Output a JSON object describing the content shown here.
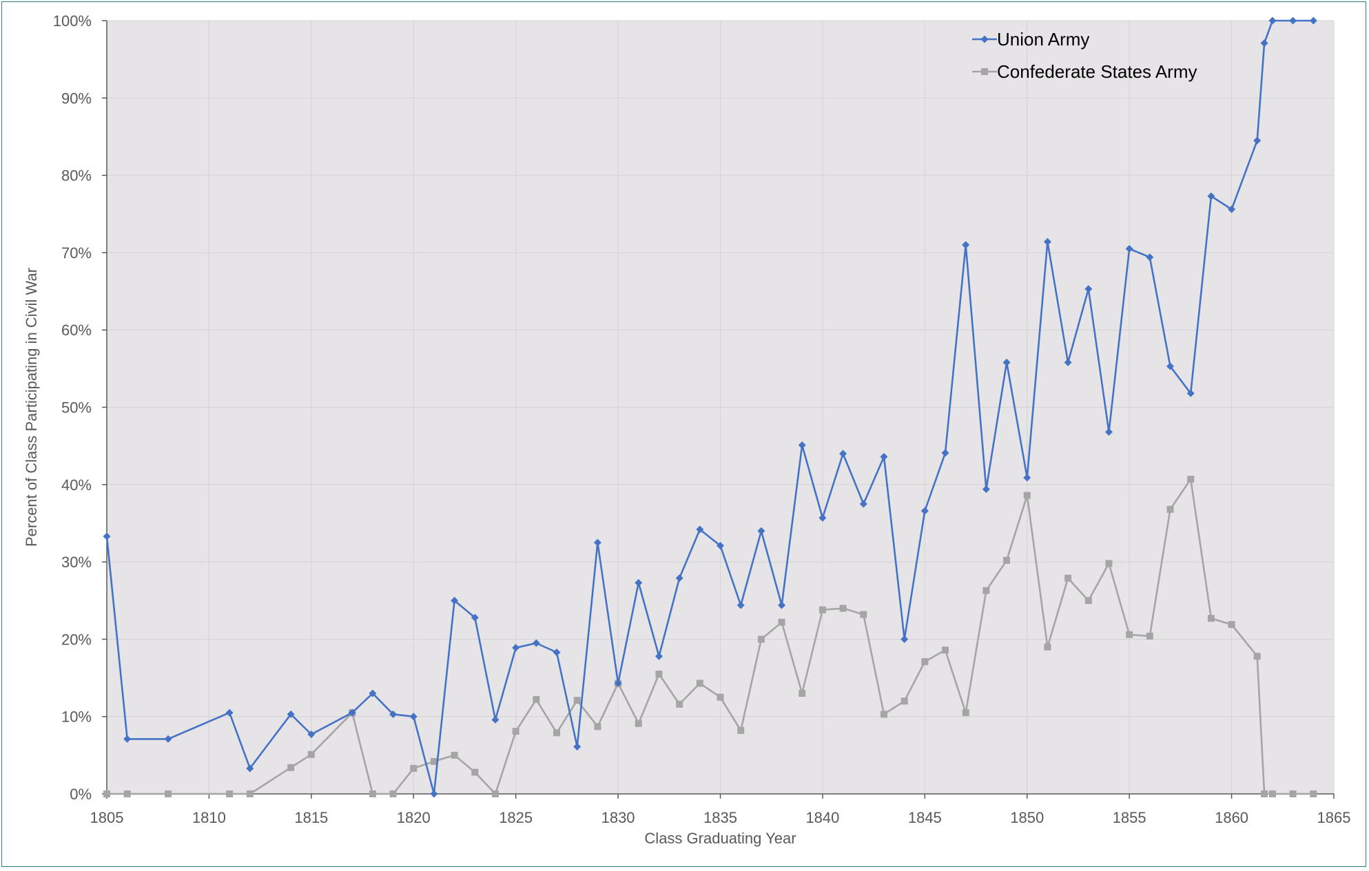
{
  "chart_data": {
    "type": "line",
    "title": "",
    "xlabel": "Class Graduating Year",
    "ylabel": "Percent of Class Participating in Civil War",
    "xlim": [
      1805,
      1865
    ],
    "ylim": [
      0,
      100
    ],
    "x_ticks": [
      1805,
      1810,
      1815,
      1820,
      1825,
      1830,
      1835,
      1840,
      1845,
      1850,
      1855,
      1860,
      1865
    ],
    "y_ticks": [
      0,
      10,
      20,
      30,
      40,
      50,
      60,
      70,
      80,
      90,
      100
    ],
    "y_tick_labels": [
      "0%",
      "10%",
      "20%",
      "30%",
      "40%",
      "50%",
      "60%",
      "70%",
      "80%",
      "90%",
      "100%"
    ],
    "grid": true,
    "legend_position": "top-right",
    "series": [
      {
        "name": "Union Army",
        "color": "#4472c4",
        "marker": "diamond",
        "points": [
          [
            1805,
            33.3
          ],
          [
            1806,
            7.1
          ],
          [
            1808,
            7.1
          ],
          [
            1811,
            10.5
          ],
          [
            1812,
            3.3
          ],
          [
            1814,
            10.3
          ],
          [
            1815,
            7.7
          ],
          [
            1817,
            10.5
          ],
          [
            1818,
            13.0
          ],
          [
            1819,
            10.3
          ],
          [
            1820,
            10.0
          ],
          [
            1821,
            0.0
          ],
          [
            1822,
            25.0
          ],
          [
            1823,
            22.8
          ],
          [
            1824,
            9.6
          ],
          [
            1825,
            18.9
          ],
          [
            1826,
            19.5
          ],
          [
            1827,
            18.3
          ],
          [
            1828,
            6.1
          ],
          [
            1829,
            32.5
          ],
          [
            1830,
            14.3
          ],
          [
            1831,
            27.3
          ],
          [
            1832,
            17.8
          ],
          [
            1833,
            27.9
          ],
          [
            1834,
            34.2
          ],
          [
            1835,
            32.1
          ],
          [
            1836,
            24.4
          ],
          [
            1837,
            34.0
          ],
          [
            1838,
            24.4
          ],
          [
            1839,
            45.1
          ],
          [
            1840,
            35.7
          ],
          [
            1841,
            44.0
          ],
          [
            1842,
            37.5
          ],
          [
            1843,
            43.6
          ],
          [
            1844,
            20.0
          ],
          [
            1845,
            36.6
          ],
          [
            1846,
            44.1
          ],
          [
            1847,
            71.0
          ],
          [
            1848,
            39.4
          ],
          [
            1849,
            55.8
          ],
          [
            1850,
            40.9
          ],
          [
            1851,
            71.4
          ],
          [
            1852,
            55.8
          ],
          [
            1853,
            65.3
          ],
          [
            1854,
            46.8
          ],
          [
            1855,
            70.5
          ],
          [
            1856,
            69.4
          ],
          [
            1857,
            55.3
          ],
          [
            1858,
            51.8
          ],
          [
            1859,
            77.3
          ],
          [
            1860,
            75.6
          ],
          [
            1861.25,
            84.5
          ],
          [
            1861.6,
            97.1
          ],
          [
            1862,
            100
          ],
          [
            1863,
            100
          ],
          [
            1864,
            100
          ]
        ]
      },
      {
        "name": "Confederate States Army",
        "color": "#a5a5a5",
        "marker": "square",
        "points": [
          [
            1805,
            0
          ],
          [
            1806,
            0
          ],
          [
            1808,
            0
          ],
          [
            1811,
            0
          ],
          [
            1812,
            0
          ],
          [
            1814,
            3.4
          ],
          [
            1815,
            5.1
          ],
          [
            1817,
            10.5
          ],
          [
            1818,
            0
          ],
          [
            1819,
            0
          ],
          [
            1820,
            3.3
          ],
          [
            1821,
            4.2
          ],
          [
            1822,
            5.0
          ],
          [
            1823,
            2.8
          ],
          [
            1824,
            0
          ],
          [
            1825,
            8.1
          ],
          [
            1826,
            12.2
          ],
          [
            1827,
            7.9
          ],
          [
            1828,
            12.1
          ],
          [
            1829,
            8.7
          ],
          [
            1830,
            14.3
          ],
          [
            1831,
            9.1
          ],
          [
            1832,
            15.5
          ],
          [
            1833,
            11.6
          ],
          [
            1834,
            14.3
          ],
          [
            1835,
            12.5
          ],
          [
            1836,
            8.2
          ],
          [
            1837,
            20.0
          ],
          [
            1838,
            22.2
          ],
          [
            1839,
            13.0
          ],
          [
            1840,
            23.8
          ],
          [
            1841,
            24.0
          ],
          [
            1842,
            23.2
          ],
          [
            1843,
            10.3
          ],
          [
            1844,
            12.0
          ],
          [
            1845,
            17.1
          ],
          [
            1846,
            18.6
          ],
          [
            1847,
            10.5
          ],
          [
            1848,
            26.3
          ],
          [
            1849,
            30.2
          ],
          [
            1850,
            38.6
          ],
          [
            1851,
            19.0
          ],
          [
            1852,
            27.9
          ],
          [
            1853,
            25.0
          ],
          [
            1854,
            29.8
          ],
          [
            1855,
            20.6
          ],
          [
            1856,
            20.4
          ],
          [
            1857,
            36.8
          ],
          [
            1858,
            40.7
          ],
          [
            1859,
            22.7
          ],
          [
            1860,
            21.9
          ],
          [
            1861.25,
            17.8
          ],
          [
            1861.6,
            0
          ],
          [
            1862,
            0
          ],
          [
            1863,
            0
          ],
          [
            1864,
            0
          ]
        ]
      }
    ]
  }
}
